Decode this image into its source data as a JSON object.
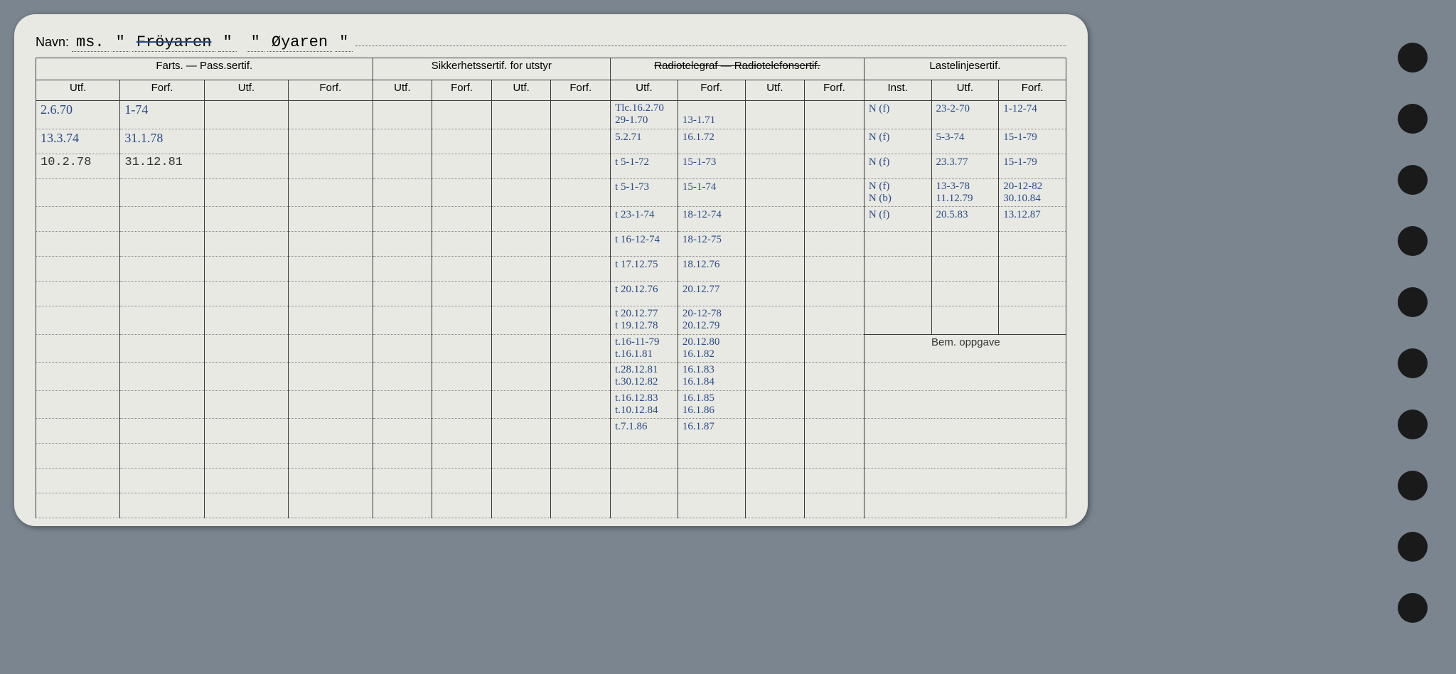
{
  "navn": {
    "label": "Navn:",
    "prefix": "ms.",
    "q1": "\"",
    "struck": "Fröyaren",
    "q2": "\"",
    "q3": "\"",
    "name2": "Øyaren",
    "q4": "\""
  },
  "headers": {
    "farts": "Farts. — Pass.sertif.",
    "sikker": "Sikkerhetssertif. for utstyr",
    "radio": "Radiotelegraf — Radiotelefonsertif.",
    "laste": "Lastelinjesertif.",
    "utf": "Utf.",
    "forf": "Forf.",
    "inst": "Inst.",
    "bem": "Bem. oppgave"
  },
  "colors": {
    "card_bg": "#e8e9e3",
    "page_bg": "#7a8590",
    "ink_blue": "#2a4a8a",
    "line": "#3a3a3a",
    "dotted": "#888888"
  },
  "farts": [
    {
      "utf": "2.6.70",
      "forf": "1-74"
    },
    {
      "utf": "13.3.74",
      "forf": "31.1.78"
    },
    {
      "utf": "10.2.78",
      "forf": "31.12.81",
      "typed": true
    }
  ],
  "radio": [
    {
      "utf": "Tlc.16.2.70\n29-1.70",
      "forf": "\n13-1.71"
    },
    {
      "utf": "5.2.71",
      "forf": "16.1.72"
    },
    {
      "utf": "t 5-1-72",
      "forf": "15-1-73"
    },
    {
      "utf": "t 5-1-73",
      "forf": "15-1-74"
    },
    {
      "utf": "t 23-1-74",
      "forf": "18-12-74"
    },
    {
      "utf": "t 16-12-74",
      "forf": "18-12-75"
    },
    {
      "utf": "t 17.12.75",
      "forf": "18.12.76"
    },
    {
      "utf": "t 20.12.76",
      "forf": "20.12.77"
    },
    {
      "utf": "t 20.12.77\nt 19.12.78",
      "forf": "20-12-78\n20.12.79"
    },
    {
      "utf": "t.16-11-79\nt.16.1.81",
      "forf": "20.12.80\n16.1.82"
    },
    {
      "utf": "t.28.12.81\nt.30.12.82",
      "forf": "16.1.83\n16.1.84"
    },
    {
      "utf": "t.16.12.83\nt.10.12.84",
      "forf": "16.1.85\n16.1.86"
    },
    {
      "utf": "t.7.1.86",
      "forf": "16.1.87"
    }
  ],
  "laste": [
    {
      "inst": "N (f)",
      "utf": "23-2-70",
      "forf": "1-12-74"
    },
    {
      "inst": "N (f)",
      "utf": "5-3-74",
      "forf": "15-1-79"
    },
    {
      "inst": "N (f)",
      "utf": "23.3.77",
      "forf": "15-1-79"
    },
    {
      "inst": "N (f)\nN (b)",
      "utf": "13-3-78\n11.12.79",
      "forf": "20-12-82\n30.10.84"
    },
    {
      "inst": "N (f)",
      "utf": "20.5.83",
      "forf": "13.12.87"
    }
  ],
  "row_count": 16
}
